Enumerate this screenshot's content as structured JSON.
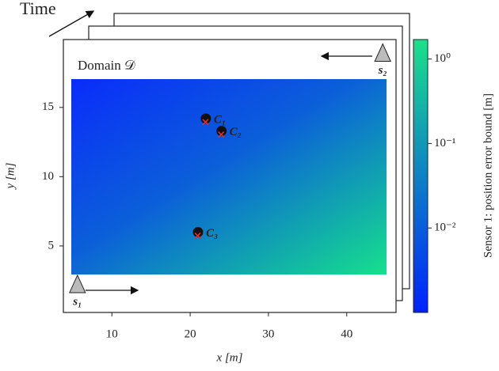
{
  "chart_data": {
    "type": "heatmap",
    "title": "Domain 𝒟",
    "annotation": "Time",
    "xlabel": "x [m]",
    "ylabel": "y [m]",
    "xlim": [
      3.8,
      46.3
    ],
    "ylim": [
      0.2,
      19.9
    ],
    "xticks": [
      10,
      20,
      30,
      40
    ],
    "yticks": [
      5,
      10,
      15
    ],
    "points": [
      {
        "name": "C₁",
        "x": 22,
        "y": 14.2
      },
      {
        "name": "C₂",
        "x": 24,
        "y": 13.3
      },
      {
        "name": "C₃",
        "x": 21,
        "y": 6
      }
    ],
    "sensors": [
      {
        "name": "s₁",
        "x": 5.6,
        "y": 2.2
      },
      {
        "name": "s₂",
        "x": 44.6,
        "y": 18.9
      }
    ],
    "colorbar": {
      "label": "Sensor 1: position error bound [m]",
      "scale": "log",
      "lim": [
        0.001,
        1.7
      ],
      "ticks": [
        {
          "value": 1,
          "label": "10⁰"
        },
        {
          "value": 0.1,
          "label": "10⁻¹"
        },
        {
          "value": 0.01,
          "label": "10⁻²"
        }
      ],
      "colors": [
        "#0022ff",
        "#1ce08a"
      ]
    }
  }
}
